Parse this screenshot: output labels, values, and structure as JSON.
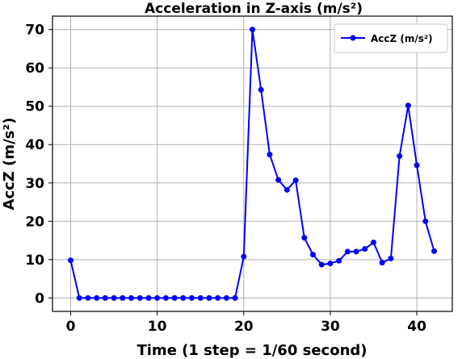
{
  "chart_data": {
    "type": "line",
    "title": "Acceleration in Z-axis (m/s²)",
    "xlabel": "Time (1 step = 1/60 second)",
    "ylabel": "AccZ (m/s²)",
    "xlim": [
      -2.1,
      44.1
    ],
    "ylim": [
      -3.5,
      73.5
    ],
    "xticks": [
      0,
      10,
      20,
      30,
      40
    ],
    "yticks": [
      0,
      10,
      20,
      30,
      40,
      50,
      60,
      70
    ],
    "grid": true,
    "legend": "top-right",
    "series": [
      {
        "name": "AccZ (m/s²)",
        "color": "#0000ff",
        "marker": "circle",
        "x": [
          0,
          1,
          2,
          3,
          4,
          5,
          6,
          7,
          8,
          9,
          10,
          11,
          12,
          13,
          14,
          15,
          16,
          17,
          18,
          19,
          20,
          21,
          22,
          23,
          24,
          25,
          26,
          27,
          28,
          29,
          30,
          31,
          32,
          33,
          34,
          35,
          36,
          37,
          38,
          39,
          40,
          41,
          42
        ],
        "y": [
          9.8,
          0,
          0,
          0,
          0,
          0,
          0,
          0,
          0,
          0,
          0,
          0,
          0,
          0,
          0,
          0,
          0,
          0,
          0,
          0,
          10.8,
          70,
          54.3,
          37.4,
          30.8,
          28.2,
          30.7,
          15.7,
          11.3,
          8.7,
          9,
          9.7,
          12.1,
          12.1,
          12.8,
          14.5,
          9.2,
          10.3,
          37,
          50.2,
          34.6,
          20,
          12.2
        ]
      }
    ]
  }
}
